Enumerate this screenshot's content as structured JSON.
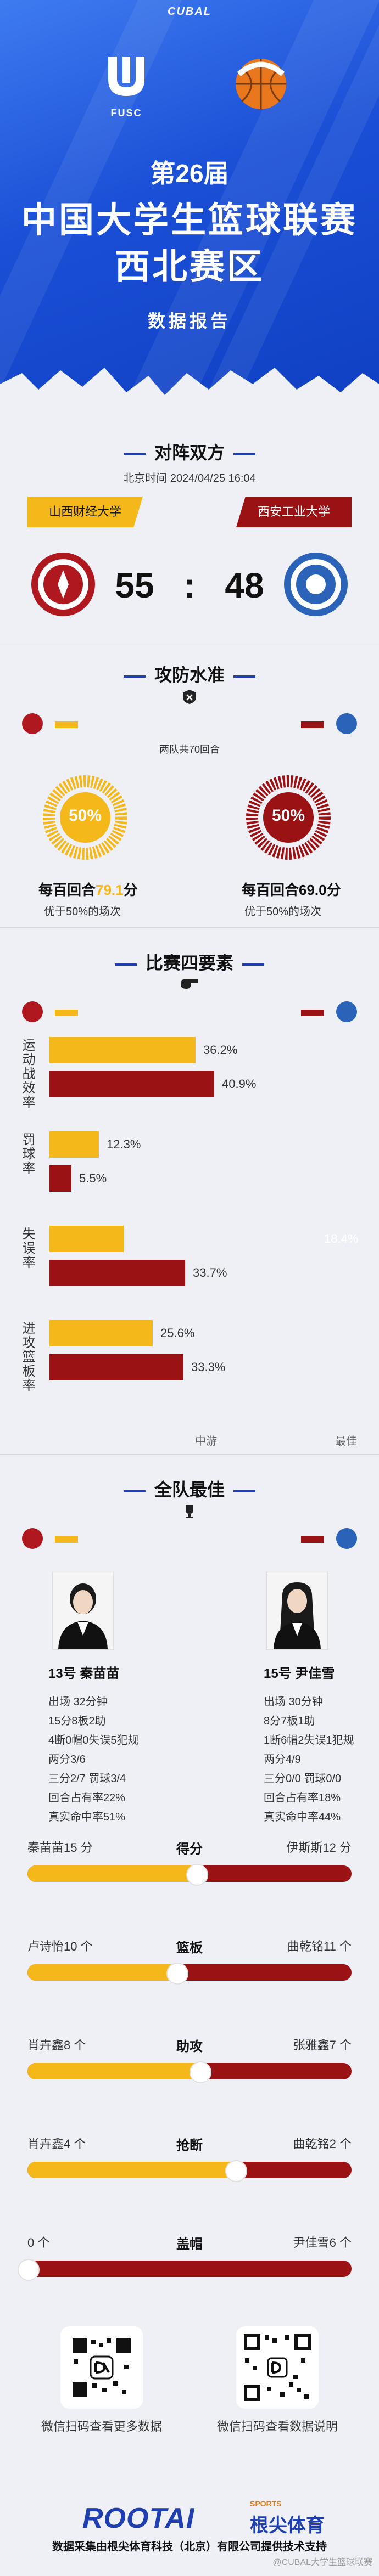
{
  "header": {
    "top_brand": "CUBAL",
    "league_logo_text": "FUSC",
    "edition": "第26届",
    "title_line1": "中国大学生篮球联赛",
    "title_line2": "西北赛区",
    "report": "数据报告"
  },
  "matchup": {
    "section_title": "对阵双方",
    "time": "北京时间 2024/04/25 16:04",
    "home": {
      "name": "山西财经大学",
      "score": "55",
      "color": "#f4b81a"
    },
    "away": {
      "name": "西安工业大学",
      "score": "48",
      "color": "#9b1214"
    },
    "colon": ":"
  },
  "offense_defense": {
    "section_title": "攻防水准",
    "rounds_note": "两队共70回合",
    "home_pct": "50%",
    "away_pct": "50%",
    "home_pct_value": 0.5,
    "away_pct_value": 0.5,
    "home_line_prefix": "每百回合",
    "home_points": "79.1",
    "home_line_suffix": "分",
    "home_note": "优于50%的场次",
    "away_line": "每百回合69.0分",
    "away_note": "优于50%的场次"
  },
  "four_factors": {
    "section_title": "比赛四要素",
    "rows": [
      {
        "label": "运动战效率",
        "home": "36.2%",
        "away": "40.9%",
        "home_value": 36.2,
        "away_value": 40.9
      },
      {
        "label": "罚球率",
        "home": "12.3%",
        "away": "5.5%",
        "home_value": 12.3,
        "away_value": 5.5
      },
      {
        "label": "失误率",
        "home": "18.4%",
        "away": "33.7%",
        "home_value": 18.4,
        "away_value": 33.7
      },
      {
        "label": "进攻篮板率",
        "home": "25.6%",
        "away": "33.3%",
        "home_value": 25.6,
        "away_value": 33.3
      }
    ],
    "axis_mid": "中游",
    "axis_best": "最佳"
  },
  "best_players": {
    "section_title": "全队最佳",
    "home": {
      "name": "13号 秦苗苗",
      "lines": [
        "出场 32分钟",
        "15分8板2助",
        "4断0帽0失误5犯规",
        "两分3/6",
        "三分2/7 罚球3/4",
        "回合占有率22%",
        "真实命中率51%"
      ]
    },
    "away": {
      "name": "15号 尹佳雪",
      "lines": [
        "出场 30分钟",
        "8分7板1助",
        "1断6帽2失误1犯规",
        "两分4/9",
        "三分0/0 罚球0/0",
        "回合占有率18%",
        "真实命中率44%"
      ]
    },
    "comparisons": [
      {
        "label": "得分",
        "home": "秦苗苗15 分",
        "away": "伊斯斯12 分",
        "home_share": 0.52
      },
      {
        "label": "篮板",
        "home": "卢诗怡10 个",
        "away": "曲乾铭11 个",
        "home_share": 0.46
      },
      {
        "label": "助攻",
        "home": "肖卉鑫8 个",
        "away": "张雅鑫7 个",
        "home_share": 0.53
      },
      {
        "label": "抢断",
        "home": "肖卉鑫4 个",
        "away": "曲乾铭2 个",
        "home_share": 0.64
      },
      {
        "label": "盖帽",
        "home": "0 个",
        "away": "尹佳雪6 个",
        "home_share": 0.0
      }
    ]
  },
  "footer": {
    "qr_left_caption": "微信扫码查看更多数据",
    "qr_right_caption": "微信扫码查看数据说明",
    "brand": "ROOTAI",
    "brand_tag": "SPORTS",
    "brand_cn": "根尖体育",
    "credit": "数据采集由根尖体育科技（北京）有限公司提供技术支持",
    "watermark": "@CUBAL大学生篮球联赛"
  }
}
